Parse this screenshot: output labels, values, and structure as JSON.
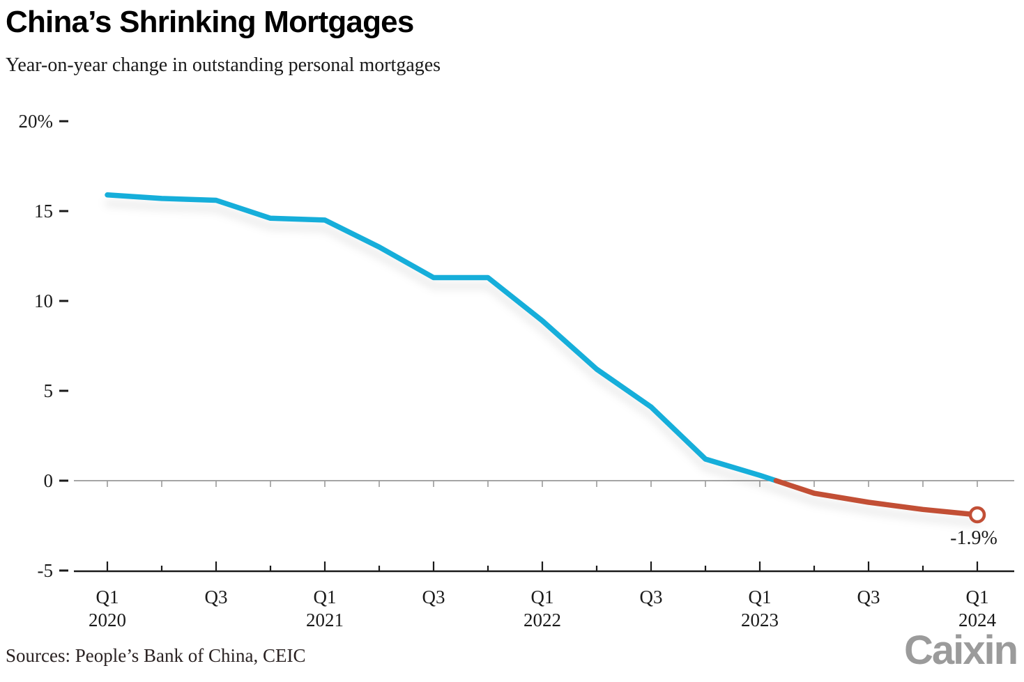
{
  "header": {
    "title": "China’s Shrinking Mortgages",
    "subtitle": "Year-on-year change in outstanding personal mortgages"
  },
  "footer": {
    "sources": "Sources: People’s Bank of China, CEIC",
    "logo": "Caixin"
  },
  "chart_data": {
    "type": "line",
    "title": "China’s Shrinking Mortgages",
    "subtitle": "Year-on-year change in outstanding personal mortgages",
    "x": [
      "Q1 2020",
      "Q2 2020",
      "Q3 2020",
      "Q4 2020",
      "Q1 2021",
      "Q2 2021",
      "Q3 2021",
      "Q4 2021",
      "Q1 2022",
      "Q2 2022",
      "Q3 2022",
      "Q4 2022",
      "Q1 2023",
      "Q2 2023",
      "Q3 2023",
      "Q4 2023",
      "Q1 2024"
    ],
    "series": [
      {
        "name": "Year-on-year change in outstanding personal mortgages (%)",
        "values": [
          15.9,
          15.7,
          15.6,
          14.6,
          14.5,
          13.0,
          11.3,
          11.3,
          8.9,
          6.2,
          4.1,
          1.2,
          0.3,
          -0.7,
          -1.2,
          -1.6,
          -1.9
        ]
      }
    ],
    "ylim": [
      -5,
      20
    ],
    "ylabel": "",
    "xlabel": "",
    "y_ticks": [
      {
        "label": "20%",
        "value": 20
      },
      {
        "label": "15",
        "value": 15
      },
      {
        "label": "10",
        "value": 10
      },
      {
        "label": "5",
        "value": 5
      },
      {
        "label": "0",
        "value": 0
      },
      {
        "label": "-5",
        "value": -5
      }
    ],
    "x_tick_labels": [
      {
        "index": 0,
        "quarter": "Q1",
        "year": "2020"
      },
      {
        "index": 2,
        "quarter": "Q3"
      },
      {
        "index": 4,
        "quarter": "Q1",
        "year": "2021"
      },
      {
        "index": 6,
        "quarter": "Q3"
      },
      {
        "index": 8,
        "quarter": "Q1",
        "year": "2022"
      },
      {
        "index": 10,
        "quarter": "Q3"
      },
      {
        "index": 12,
        "quarter": "Q1",
        "year": "2023"
      },
      {
        "index": 14,
        "quarter": "Q3"
      },
      {
        "index": 16,
        "quarter": "Q1",
        "year": "2024"
      }
    ],
    "end_label": "-1.9%",
    "colors": {
      "positive_line": "#15AEDA",
      "negative_line": "#C24F36",
      "axis": "#1a1a1a",
      "zero_line": "#878787",
      "text": "#1a1a1a",
      "logo_gray": "#9b9b9b"
    },
    "grid": "zero baseline only",
    "legend": "none",
    "marker": "open circle on last point"
  }
}
